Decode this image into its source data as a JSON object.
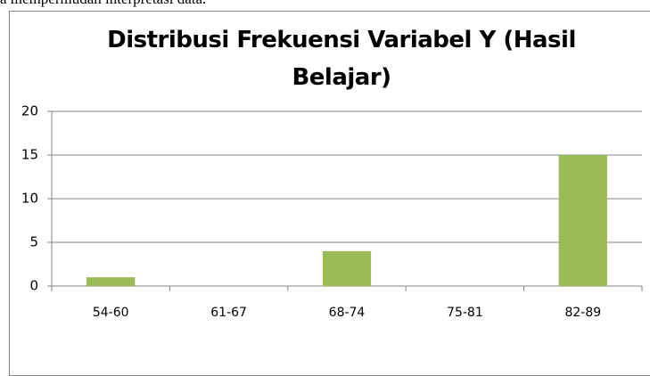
{
  "header_text": "a mempermudah interpretasi data.",
  "chart_data": {
    "type": "bar",
    "title": "Distribusi Frekuensi Variabel Y (Hasil Belajar)",
    "categories": [
      "54-60",
      "61-67",
      "68-74",
      "75-81",
      "82-89"
    ],
    "values": [
      1,
      0,
      4,
      0,
      15
    ],
    "color": "#9bbb59",
    "ylim": [
      0,
      20
    ],
    "yticks": [
      0,
      5,
      10,
      15,
      20
    ],
    "grid": true
  }
}
